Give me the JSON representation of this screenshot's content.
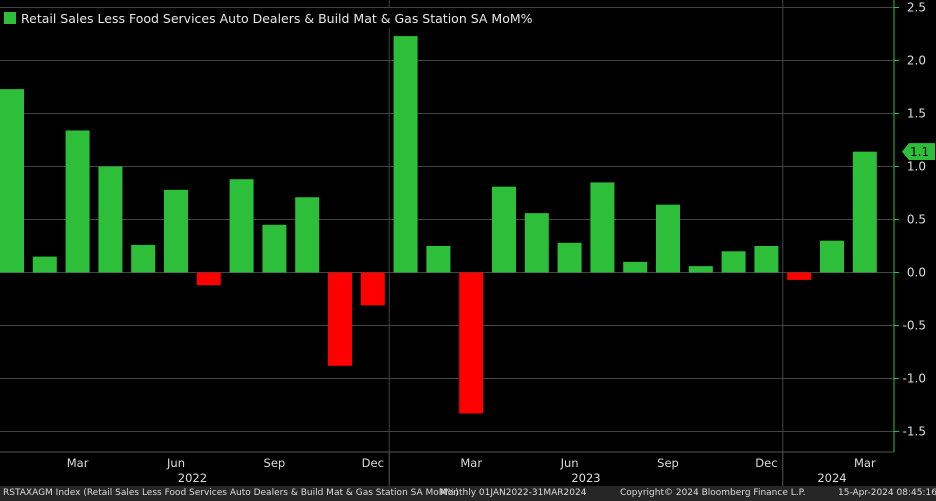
{
  "chart_data": {
    "type": "bar",
    "title": "Retail Sales Less Food Services Auto Dealers & Build Mat & Gas Station SA MoM%",
    "xlabel": "",
    "ylabel": "",
    "ylim": [
      -1.7,
      2.6
    ],
    "yticks": [
      2.5,
      2.0,
      1.5,
      1.0,
      0.5,
      0.0,
      -0.5,
      -1.0,
      -1.5
    ],
    "ytick_labels": [
      "2.5",
      "2.0",
      "1.5",
      "1.0",
      "0.5",
      "0.0",
      "-0.5",
      "-1.0",
      "-1.5"
    ],
    "categories": [
      "Jan 2022",
      "Feb 2022",
      "Mar 2022",
      "Apr 2022",
      "May 2022",
      "Jun 2022",
      "Jul 2022",
      "Aug 2022",
      "Sep 2022",
      "Oct 2022",
      "Nov 2022",
      "Dec 2022",
      "Jan 2023",
      "Feb 2023",
      "Mar 2023",
      "Apr 2023",
      "May 2023",
      "Jun 2023",
      "Jul 2023",
      "Aug 2023",
      "Sep 2023",
      "Oct 2023",
      "Nov 2023",
      "Dec 2023",
      "Jan 2024",
      "Feb 2024",
      "Mar 2024"
    ],
    "values": [
      1.73,
      0.15,
      1.34,
      1.0,
      0.26,
      0.78,
      -0.12,
      0.88,
      0.45,
      0.71,
      -0.88,
      -0.31,
      2.23,
      0.25,
      -1.33,
      0.81,
      0.56,
      0.28,
      0.85,
      0.1,
      0.64,
      0.06,
      0.2,
      0.25,
      -0.07,
      0.3,
      1.14
    ],
    "month_tick_labels": [
      {
        "index": 2,
        "label": "Mar"
      },
      {
        "index": 5,
        "label": "Jun"
      },
      {
        "index": 8,
        "label": "Sep"
      },
      {
        "index": 11,
        "label": "Dec"
      },
      {
        "index": 14,
        "label": "Mar"
      },
      {
        "index": 17,
        "label": "Jun"
      },
      {
        "index": 20,
        "label": "Sep"
      },
      {
        "index": 23,
        "label": "Dec"
      },
      {
        "index": 26,
        "label": "Mar"
      }
    ],
    "year_labels": [
      {
        "center_index": 5.5,
        "label": "2022"
      },
      {
        "center_index": 17.5,
        "label": "2023"
      },
      {
        "center_index": 25,
        "label": "2024"
      }
    ],
    "year_divider_indices": [
      11.5,
      23.5
    ],
    "last_value_label": "1.1",
    "legend_position": "top-left",
    "grid": true
  },
  "colors": {
    "positive": "#2ebf3a",
    "negative": "#ff0000",
    "axis": "#2ebf3a",
    "grid": "#444444",
    "background": "#000000"
  },
  "legend": {
    "label": "Retail Sales Less Food Services Auto Dealers & Build Mat & Gas Station SA MoM%"
  },
  "footer": {
    "description": "RSTAXAGM Index (Retail Sales Less Food Services Auto Dealers & Build Mat & Gas Station SA MoM%)",
    "range": "Monthly 01JAN2022-31MAR2024",
    "copyright": "Copyright© 2024 Bloomberg Finance L.P.",
    "timestamp": "15-Apr-2024 08:45:16"
  }
}
